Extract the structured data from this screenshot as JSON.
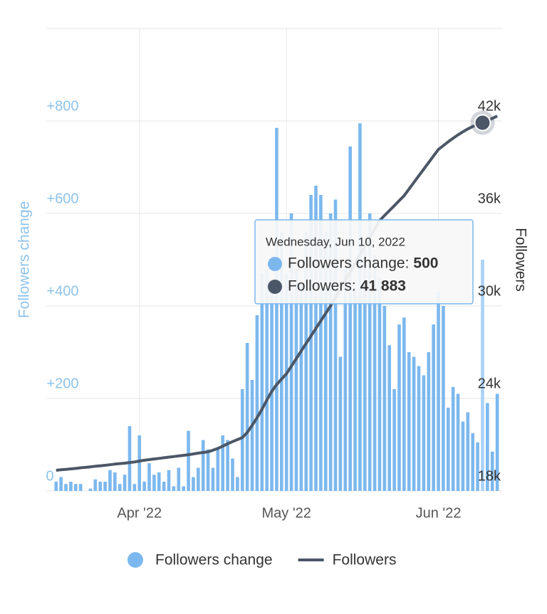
{
  "chart_data": {
    "type": "bar-line",
    "x": [
      "2022-03-15",
      "2022-03-16",
      "2022-03-17",
      "2022-03-18",
      "2022-03-19",
      "2022-03-20",
      "2022-03-21",
      "2022-03-22",
      "2022-03-23",
      "2022-03-24",
      "2022-03-25",
      "2022-03-26",
      "2022-03-27",
      "2022-03-28",
      "2022-03-29",
      "2022-03-30",
      "2022-03-31",
      "2022-04-01",
      "2022-04-02",
      "2022-04-03",
      "2022-04-04",
      "2022-04-05",
      "2022-04-06",
      "2022-04-07",
      "2022-04-08",
      "2022-04-09",
      "2022-04-10",
      "2022-04-11",
      "2022-04-12",
      "2022-04-13",
      "2022-04-14",
      "2022-04-15",
      "2022-04-16",
      "2022-04-17",
      "2022-04-18",
      "2022-04-19",
      "2022-04-20",
      "2022-04-21",
      "2022-04-22",
      "2022-04-23",
      "2022-04-24",
      "2022-04-25",
      "2022-04-26",
      "2022-04-27",
      "2022-04-28",
      "2022-04-29",
      "2022-04-30",
      "2022-05-01",
      "2022-05-02",
      "2022-05-03",
      "2022-05-04",
      "2022-05-05",
      "2022-05-06",
      "2022-05-07",
      "2022-05-08",
      "2022-05-09",
      "2022-05-10",
      "2022-05-11",
      "2022-05-12",
      "2022-05-13",
      "2022-05-14",
      "2022-05-15",
      "2022-05-16",
      "2022-05-17",
      "2022-05-18",
      "2022-05-19",
      "2022-05-20",
      "2022-05-21",
      "2022-05-22",
      "2022-05-23",
      "2022-05-24",
      "2022-05-25",
      "2022-05-26",
      "2022-05-27",
      "2022-05-28",
      "2022-05-29",
      "2022-05-30",
      "2022-05-31",
      "2022-06-01",
      "2022-06-02",
      "2022-06-03",
      "2022-06-04",
      "2022-06-05",
      "2022-06-06",
      "2022-06-07",
      "2022-06-08",
      "2022-06-09",
      "2022-06-10",
      "2022-06-11",
      "2022-06-12",
      "2022-06-13"
    ],
    "series": [
      {
        "name": "Followers change",
        "color": "#7cb8ee",
        "kind": "bar",
        "values": [
          20,
          30,
          15,
          20,
          15,
          15,
          0,
          5,
          25,
          20,
          20,
          45,
          40,
          15,
          35,
          140,
          15,
          120,
          20,
          60,
          35,
          40,
          20,
          45,
          10,
          50,
          10,
          130,
          30,
          50,
          110,
          90,
          50,
          90,
          120,
          110,
          70,
          30,
          220,
          320,
          240,
          380,
          470,
          480,
          450,
          785,
          560,
          470,
          600,
          480,
          450,
          560,
          640,
          660,
          640,
          560,
          600,
          630,
          290,
          480,
          745,
          440,
          795,
          520,
          600,
          510,
          460,
          400,
          315,
          220,
          360,
          375,
          300,
          290,
          270,
          250,
          300,
          360,
          430,
          400,
          180,
          225,
          210,
          150,
          170,
          125,
          105,
          500,
          190,
          85,
          210
        ]
      },
      {
        "name": "Followers",
        "color": "#4b5666",
        "kind": "line",
        "axis": "y2",
        "values": [
          19340,
          19370,
          19400,
          19430,
          19460,
          19500,
          19530,
          19560,
          19600,
          19630,
          19660,
          19700,
          19740,
          19770,
          19800,
          19840,
          19880,
          19940,
          19990,
          20030,
          20070,
          20110,
          20150,
          20190,
          20230,
          20270,
          20310,
          20350,
          20400,
          20450,
          20490,
          20540,
          20640,
          20760,
          20900,
          21060,
          21200,
          21330,
          21460,
          21800,
          22250,
          22750,
          23300,
          23900,
          24460,
          24900,
          25250,
          25600,
          26090,
          26580,
          27070,
          27560,
          28050,
          28540,
          29030,
          29520,
          30000,
          30550,
          31110,
          31660,
          32220,
          32770,
          33330,
          33880,
          34440,
          34990,
          35540,
          35860,
          36180,
          36500,
          36830,
          37150,
          37580,
          38010,
          38440,
          38870,
          39300,
          39730,
          40150,
          40400,
          40650,
          40880,
          41100,
          41300,
          41480,
          41640,
          41780,
          41883,
          42020,
          42160,
          42320
        ]
      }
    ],
    "xlim": [
      "2022-03-13",
      "2022-06-14"
    ],
    "xticks": [
      {
        "value": "2022-04-01",
        "label": "Apr '22"
      },
      {
        "value": "2022-05-01",
        "label": "May '22"
      },
      {
        "value": "2022-06-01",
        "label": "Jun '22"
      }
    ],
    "ylabel": "Followers change",
    "ylim": [
      0,
      1000
    ],
    "yticks": [
      0,
      {
        "value": 200,
        "label": "+200"
      },
      {
        "value": 400,
        "label": "+400"
      },
      {
        "value": 600,
        "label": "+600"
      },
      {
        "value": 800,
        "label": "+800"
      }
    ],
    "y2label": "Followers",
    "y2lim": [
      18000,
      48000
    ],
    "y2ticks": [
      {
        "value": 18000,
        "label": "18k"
      },
      {
        "value": 24000,
        "label": "24k"
      },
      {
        "value": 30000,
        "label": "30k"
      },
      {
        "value": 36000,
        "label": "36k"
      },
      {
        "value": 42000,
        "label": "42k"
      }
    ],
    "grid": true,
    "legend": "bottom",
    "tooltip": {
      "x": "2022-06-10",
      "date": "Wednesday, Jun 10, 2022",
      "items": [
        {
          "name": "Followers change:",
          "value": 500
        },
        {
          "name": "Followers:",
          "value": 41883,
          "value_label": "41 883"
        }
      ]
    }
  }
}
